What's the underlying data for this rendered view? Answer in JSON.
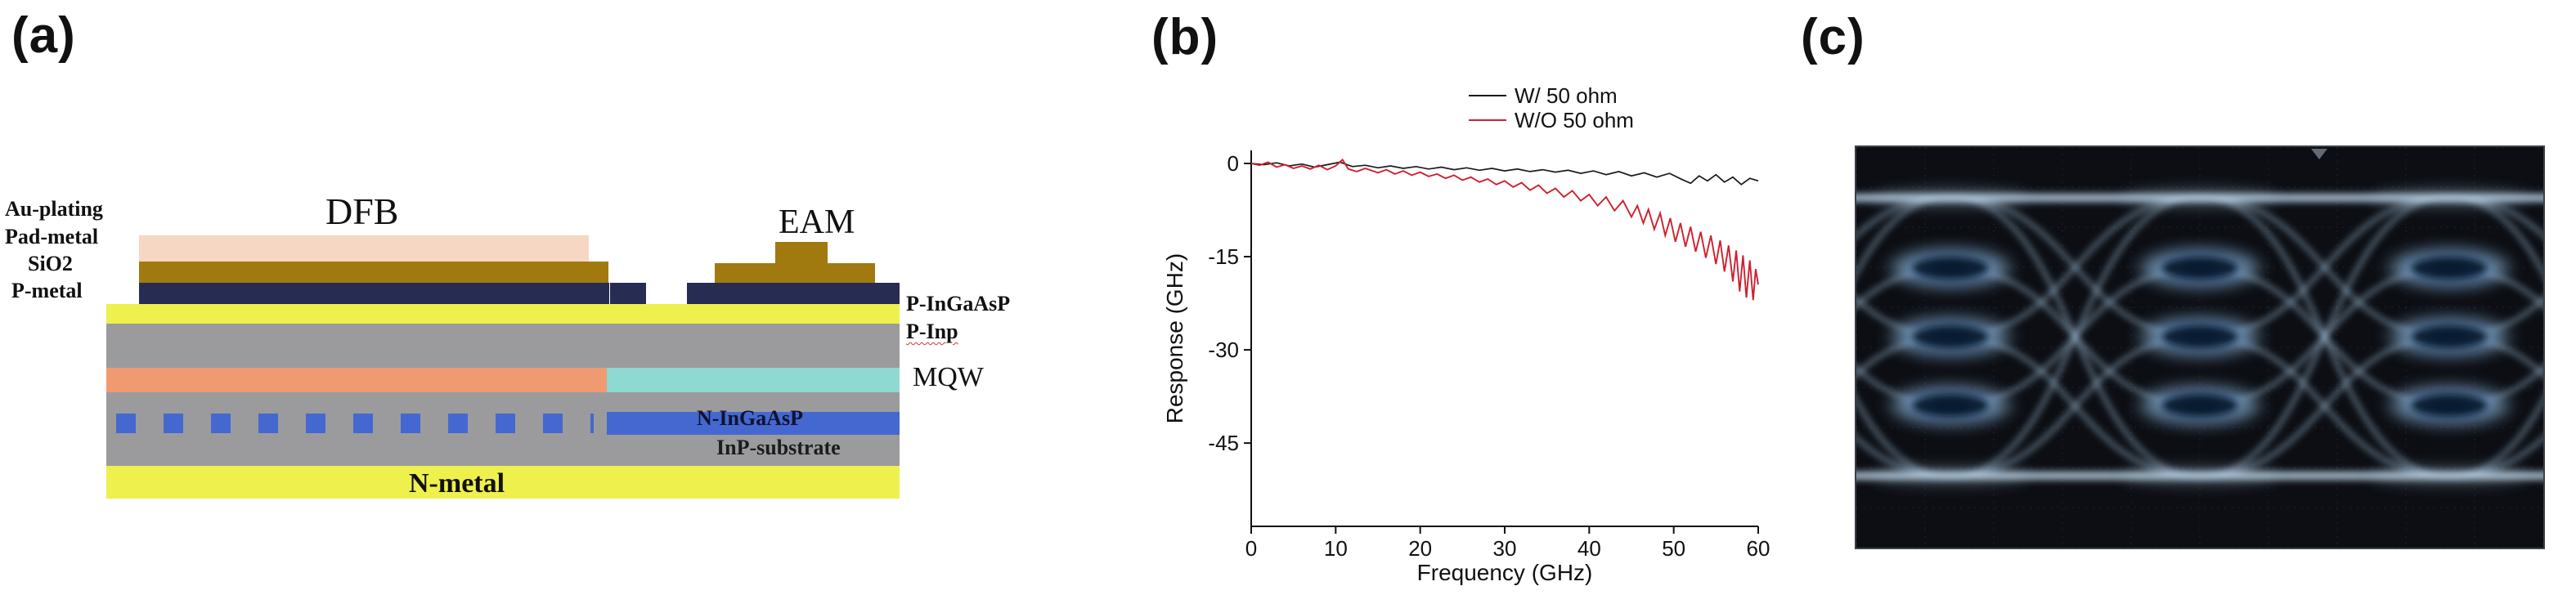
{
  "panels": {
    "a": "(a)",
    "b": "(b)",
    "c": "(c)"
  },
  "device": {
    "left_labels": [
      "Au-plating",
      "Pad-metal",
      "SiO2",
      "P-metal"
    ],
    "dfb_title": "DFB",
    "eam_title": "EAM",
    "right_labels": [
      "P-InGaAsP",
      "P-Inp"
    ],
    "mqw_label": "MQW",
    "n_ingaasp_label": "N-InGaAsP",
    "inp_substrate_label": "InP-substrate",
    "n_metal_label": "N-metal",
    "layer_colors": {
      "pad_metal_pink": "#f6d7c3",
      "metal_gold": "#a07a0e",
      "sio2_navy": "#272c52",
      "metal_yellow": "#eef04e",
      "inp_gray": "#9b9b9e",
      "dfb_active_orange": "#f09a72",
      "eam_active_cyan": "#8ed9d2",
      "n_contact_blue": "#4468cf"
    }
  },
  "chart_data": {
    "type": "line",
    "title": "",
    "xlabel": "Frequency (GHz)",
    "ylabel": "Response (GHz)",
    "xlim": [
      0,
      60
    ],
    "ylim": [
      -58.4,
      2.1
    ],
    "xticks": [
      0,
      10,
      20,
      30,
      40,
      50,
      60
    ],
    "yticks": [
      0,
      -15,
      -30,
      -45
    ],
    "grid": false,
    "legend_position": "top-right",
    "series": [
      {
        "name": "W/ 50 ohm",
        "color": "#1a1a1a",
        "points": [
          [
            0,
            0
          ],
          [
            1.5,
            -0.2
          ],
          [
            3,
            0.1
          ],
          [
            4.5,
            -0.4
          ],
          [
            6,
            -0.1
          ],
          [
            7.5,
            -0.6
          ],
          [
            9,
            -0.2
          ],
          [
            10.5,
            0.2
          ],
          [
            12,
            -0.5
          ],
          [
            13.5,
            -0.3
          ],
          [
            15,
            -0.7
          ],
          [
            16.5,
            -0.4
          ],
          [
            18,
            -0.8
          ],
          [
            19.5,
            -0.5
          ],
          [
            21,
            -0.9
          ],
          [
            22.5,
            -0.6
          ],
          [
            24,
            -1.0
          ],
          [
            25.5,
            -0.7
          ],
          [
            27,
            -1.1
          ],
          [
            28.5,
            -0.8
          ],
          [
            30,
            -1.2
          ],
          [
            31.5,
            -0.9
          ],
          [
            33,
            -1.3
          ],
          [
            34.5,
            -1.0
          ],
          [
            36,
            -1.4
          ],
          [
            37.5,
            -1.1
          ],
          [
            39,
            -1.6
          ],
          [
            40.5,
            -1.2
          ],
          [
            42,
            -1.8
          ],
          [
            43.5,
            -1.3
          ],
          [
            45,
            -2.0
          ],
          [
            46.5,
            -1.5
          ],
          [
            48,
            -2.2
          ],
          [
            49.5,
            -1.6
          ],
          [
            51,
            -2.6
          ],
          [
            52,
            -3.2
          ],
          [
            53,
            -2.0
          ],
          [
            54,
            -2.8
          ],
          [
            55,
            -1.8
          ],
          [
            56,
            -3.0
          ],
          [
            57,
            -2.2
          ],
          [
            58,
            -3.4
          ],
          [
            59,
            -2.4
          ],
          [
            60,
            -2.8
          ]
        ]
      },
      {
        "name": "W/O 50 ohm",
        "color": "#cf2030",
        "points": [
          [
            0,
            0
          ],
          [
            1,
            -0.3
          ],
          [
            2,
            0.2
          ],
          [
            3,
            -0.6
          ],
          [
            4,
            -0.2
          ],
          [
            5,
            -0.8
          ],
          [
            6,
            -0.4
          ],
          [
            7,
            -0.9
          ],
          [
            8,
            -0.3
          ],
          [
            9,
            -1.0
          ],
          [
            10,
            -0.4
          ],
          [
            10.8,
            0.6
          ],
          [
            11.5,
            -0.9
          ],
          [
            12.5,
            -1.3
          ],
          [
            13.5,
            -0.8
          ],
          [
            15,
            -1.5
          ],
          [
            16,
            -1.0
          ],
          [
            17,
            -1.7
          ],
          [
            18,
            -1.2
          ],
          [
            19,
            -1.9
          ],
          [
            20,
            -1.4
          ],
          [
            21,
            -2.1
          ],
          [
            22,
            -1.7
          ],
          [
            23,
            -2.4
          ],
          [
            24,
            -1.9
          ],
          [
            25,
            -2.7
          ],
          [
            26,
            -2.2
          ],
          [
            27,
            -3.0
          ],
          [
            28,
            -2.5
          ],
          [
            29,
            -3.4
          ],
          [
            30,
            -2.8
          ],
          [
            31,
            -3.8
          ],
          [
            32,
            -3.1
          ],
          [
            33,
            -4.3
          ],
          [
            34,
            -3.5
          ],
          [
            35,
            -4.8
          ],
          [
            36,
            -4.0
          ],
          [
            37,
            -5.4
          ],
          [
            38,
            -4.4
          ],
          [
            39,
            -6.0
          ],
          [
            40,
            -5.0
          ],
          [
            41,
            -6.8
          ],
          [
            42,
            -5.4
          ],
          [
            43,
            -7.6
          ],
          [
            44,
            -6.0
          ],
          [
            45,
            -8.6
          ],
          [
            45.7,
            -6.8
          ],
          [
            46.4,
            -9.6
          ],
          [
            47,
            -7.4
          ],
          [
            47.7,
            -10.6
          ],
          [
            48.4,
            -8.0
          ],
          [
            49,
            -11.6
          ],
          [
            49.6,
            -8.8
          ],
          [
            50.2,
            -12.6
          ],
          [
            50.8,
            -9.6
          ],
          [
            51.4,
            -13.4
          ],
          [
            52,
            -10.2
          ],
          [
            52.6,
            -14.2
          ],
          [
            53.2,
            -11.0
          ],
          [
            53.8,
            -15.2
          ],
          [
            54.4,
            -11.6
          ],
          [
            55,
            -16.2
          ],
          [
            55.5,
            -12.4
          ],
          [
            56,
            -17.4
          ],
          [
            56.5,
            -13.2
          ],
          [
            57,
            -19.0
          ],
          [
            57.4,
            -14.0
          ],
          [
            57.8,
            -20.6
          ],
          [
            58.2,
            -14.8
          ],
          [
            58.6,
            -21.6
          ],
          [
            59,
            -15.6
          ],
          [
            59.4,
            -22.0
          ],
          [
            59.7,
            -17.0
          ],
          [
            60,
            -19.5
          ]
        ]
      }
    ]
  },
  "eye_diagram": {
    "kind": "oscilloscope-eye-diagram",
    "trace_color": "#a9cde9",
    "background": "#0c0e13"
  }
}
